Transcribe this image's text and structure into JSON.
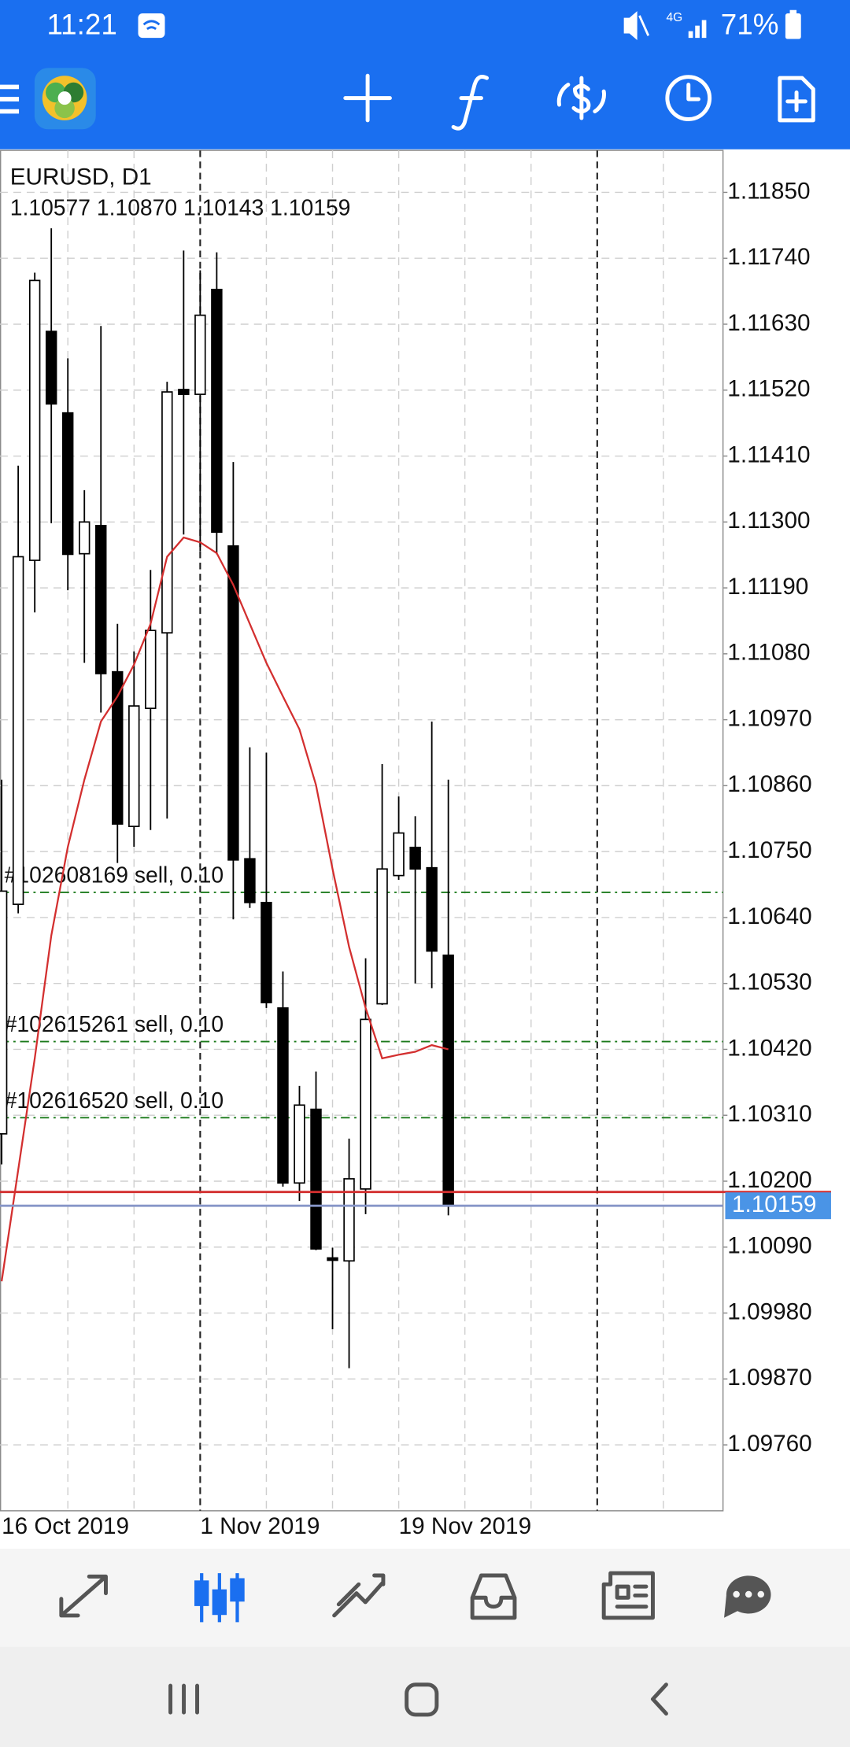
{
  "status_bar": {
    "time": "11:21",
    "network": "4G",
    "battery": "71%"
  },
  "chart_data": {
    "type": "candlestick",
    "title": "EURUSD, D1",
    "ohlc_line": "1.10577 1.10870 1.10143 1.10159",
    "categories": [
      "16 Oct 2019",
      null,
      null,
      null,
      null,
      null,
      null,
      null,
      null,
      null,
      null,
      null,
      "1 Nov 2019",
      null,
      null,
      null,
      null,
      null,
      null,
      null,
      null,
      null,
      null,
      null,
      "19 Nov 2019",
      null,
      null,
      null
    ],
    "open": [
      1.10279,
      1.10662,
      1.11236,
      1.11618,
      1.11482,
      1.11247,
      1.11294,
      1.1105,
      1.10792,
      1.10989,
      1.11115,
      1.11521,
      1.11513,
      1.11688,
      1.1126,
      1.10738,
      1.10665,
      1.10489,
      1.10197,
      1.1032,
      1.10072,
      1.10067,
      1.10187,
      1.10496,
      1.1071,
      1.10757,
      1.10723,
      1.10577
    ],
    "high": [
      1.1087,
      1.11394,
      1.11716,
      1.1179,
      1.11573,
      1.11353,
      1.11627,
      1.1113,
      1.11084,
      1.1122,
      1.11534,
      1.11753,
      1.1172,
      1.1175,
      1.114,
      1.10924,
      1.10915,
      1.1055,
      1.10359,
      1.10383,
      1.10089,
      1.10271,
      1.10572,
      1.10896,
      1.10842,
      1.10809,
      1.10967,
      1.1087
    ],
    "low": [
      1.10228,
      1.10647,
      1.11149,
      1.11298,
      1.11186,
      1.11065,
      1.10982,
      1.10731,
      1.10758,
      1.10786,
      1.10805,
      1.11279,
      1.11251,
      1.11246,
      1.10637,
      1.10656,
      1.10489,
      1.10191,
      1.10167,
      1.10085,
      1.09953,
      1.09888,
      1.10145,
      1.10494,
      1.10703,
      1.1053,
      1.10522,
      1.10143
    ],
    "close": [
      1.10684,
      1.11242,
      1.11703,
      1.11497,
      1.11246,
      1.113,
      1.11047,
      1.10796,
      1.10993,
      1.11119,
      1.11517,
      1.11513,
      1.11645,
      1.11283,
      1.10736,
      1.10665,
      1.10498,
      1.10197,
      1.10327,
      1.10087,
      1.10068,
      1.10204,
      1.1047,
      1.10721,
      1.10781,
      1.10721,
      1.10584,
      1.10159
    ],
    "moving_average": {
      "color": "#d32f2f",
      "values": [
        1.10033,
        1.10219,
        1.10405,
        1.1061,
        1.10758,
        1.1087,
        1.10967,
        1.11009,
        1.11062,
        1.1113,
        1.11242,
        1.11274,
        1.11266,
        1.11248,
        1.11195,
        1.1113,
        1.11065,
        1.11009,
        1.10954,
        1.10861,
        1.10721,
        1.10591,
        1.10489,
        1.10405,
        1.10411,
        1.10416,
        1.10427,
        1.1042
      ]
    },
    "orders": [
      {
        "label": "#102608169 sell, 0.10",
        "value": 1.10682,
        "color": "#1b7a1b"
      },
      {
        "label": "#102615261 sell, 0.10",
        "value": 1.10433,
        "color": "#1b7a1b"
      },
      {
        "label": "#102616520 sell, 0.10",
        "value": 1.10306,
        "color": "#1b7a1b"
      }
    ],
    "bid": 1.10159,
    "bid_color": "#8796c8",
    "ask": 1.10182,
    "ask_color": "#d32f2f",
    "ylim": [
      1.0965,
      1.1192
    ],
    "yticks": [
      {
        "value": 1.1185,
        "label": "1.11850"
      },
      {
        "value": 1.1174,
        "label": "1.11740"
      },
      {
        "value": 1.1163,
        "label": "1.11630"
      },
      {
        "value": 1.1152,
        "label": "1.11520"
      },
      {
        "value": 1.1141,
        "label": "1.11410"
      },
      {
        "value": 1.113,
        "label": "1.11300"
      },
      {
        "value": 1.1119,
        "label": "1.11190"
      },
      {
        "value": 1.1108,
        "label": "1.11080"
      },
      {
        "value": 1.1097,
        "label": "1.10970"
      },
      {
        "value": 1.1086,
        "label": "1.10860"
      },
      {
        "value": 1.1075,
        "label": "1.10750"
      },
      {
        "value": 1.1064,
        "label": "1.10640"
      },
      {
        "value": 1.1053,
        "label": "1.10530"
      },
      {
        "value": 1.1042,
        "label": "1.10420"
      },
      {
        "value": 1.1031,
        "label": "1.10310"
      },
      {
        "value": 1.102,
        "label": "1.10200"
      },
      {
        "value": 1.1009,
        "label": "1.10090"
      },
      {
        "value": 1.0998,
        "label": "1.09980"
      },
      {
        "value": 1.0987,
        "label": "1.09870"
      },
      {
        "value": 1.0976,
        "label": "1.09760"
      }
    ],
    "grid": true
  }
}
